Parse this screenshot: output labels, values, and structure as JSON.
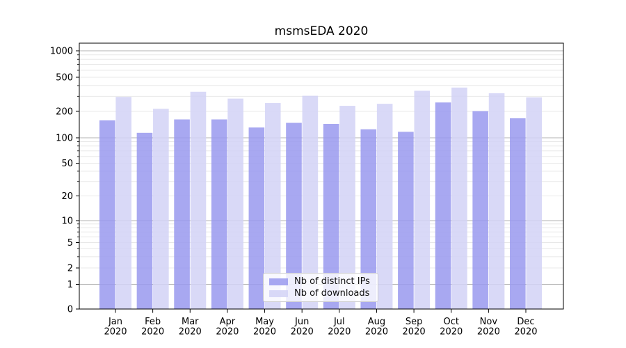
{
  "title": "msmsEDA 2020",
  "colors": {
    "bar_distinct_ips": "#9999ee",
    "bar_downloads": "#d2d2f6",
    "bar_opacity": 0.85,
    "grid_major": "#b3b3b3",
    "grid_minor": "#e8e8e8",
    "axis": "#000000",
    "tick_label": "#000000",
    "legend_border": "#cccccc",
    "legend_background": "rgba(255,255,255,0.8)"
  },
  "legend": {
    "items": [
      {
        "label": "Nb of distinct IPs",
        "color_key": "bar_distinct_ips"
      },
      {
        "label": "Nb of downloads",
        "color_key": "bar_downloads"
      }
    ]
  },
  "chart_data": {
    "type": "bar",
    "title": "msmsEDA 2020",
    "categories": [
      "Jan",
      "Feb",
      "Mar",
      "Apr",
      "May",
      "Jun",
      "Jul",
      "Aug",
      "Sep",
      "Oct",
      "Nov",
      "Dec"
    ],
    "category_year": "2020",
    "series": [
      {
        "name": "Nb of distinct IPs",
        "color_key": "bar_distinct_ips",
        "values": [
          158,
          114,
          162,
          162,
          131,
          148,
          144,
          125,
          117,
          254,
          201,
          167
        ]
      },
      {
        "name": "Nb of downloads",
        "color_key": "bar_downloads",
        "values": [
          295,
          214,
          339,
          282,
          250,
          304,
          232,
          245,
          348,
          379,
          325,
          291
        ]
      }
    ],
    "yscale": "log-like (log decades above 1, compressed linear segment 0-1)",
    "yticks": [
      1000,
      500,
      200,
      100,
      50,
      20,
      10,
      5,
      2,
      1,
      0
    ],
    "y_major_ticks": [
      1,
      10,
      100,
      1000
    ],
    "y_minor_gridlines": [
      3,
      4,
      6,
      7,
      8,
      9,
      30,
      40,
      60,
      70,
      80,
      90,
      300,
      400,
      600,
      700,
      800,
      900
    ],
    "ylim": [
      0,
      1200
    ],
    "grid": "horizontal",
    "legend_position": "lower center"
  }
}
